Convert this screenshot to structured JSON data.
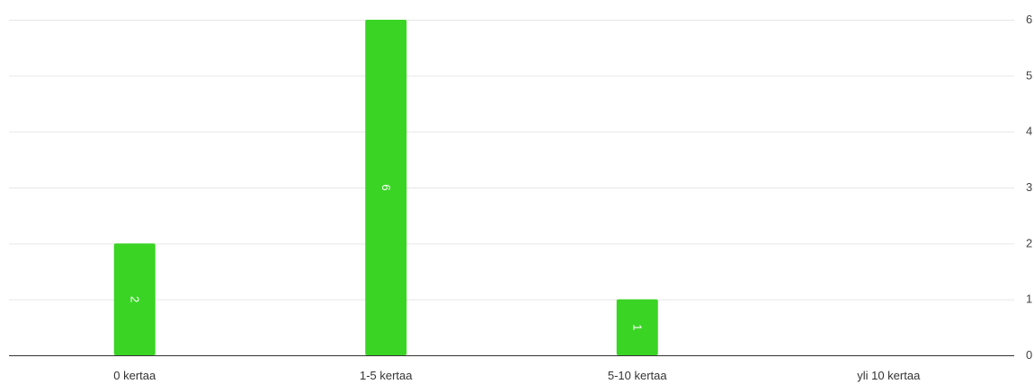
{
  "chart_data": {
    "type": "bar",
    "categories": [
      "0 kertaa",
      "1-5 kertaa",
      "5-10 kertaa",
      "yli 10 kertaa"
    ],
    "values": [
      2,
      6,
      1,
      0
    ],
    "y_ticks": [
      "0",
      "1",
      "2",
      "3",
      "4",
      "5",
      "6"
    ],
    "ylim": [
      0,
      6
    ],
    "y_axis_position": "right",
    "data_labels": [
      "2",
      "6",
      "1",
      ""
    ],
    "data_label_rotation": "vertical",
    "grid": true,
    "bar_color": "#3ad425"
  }
}
